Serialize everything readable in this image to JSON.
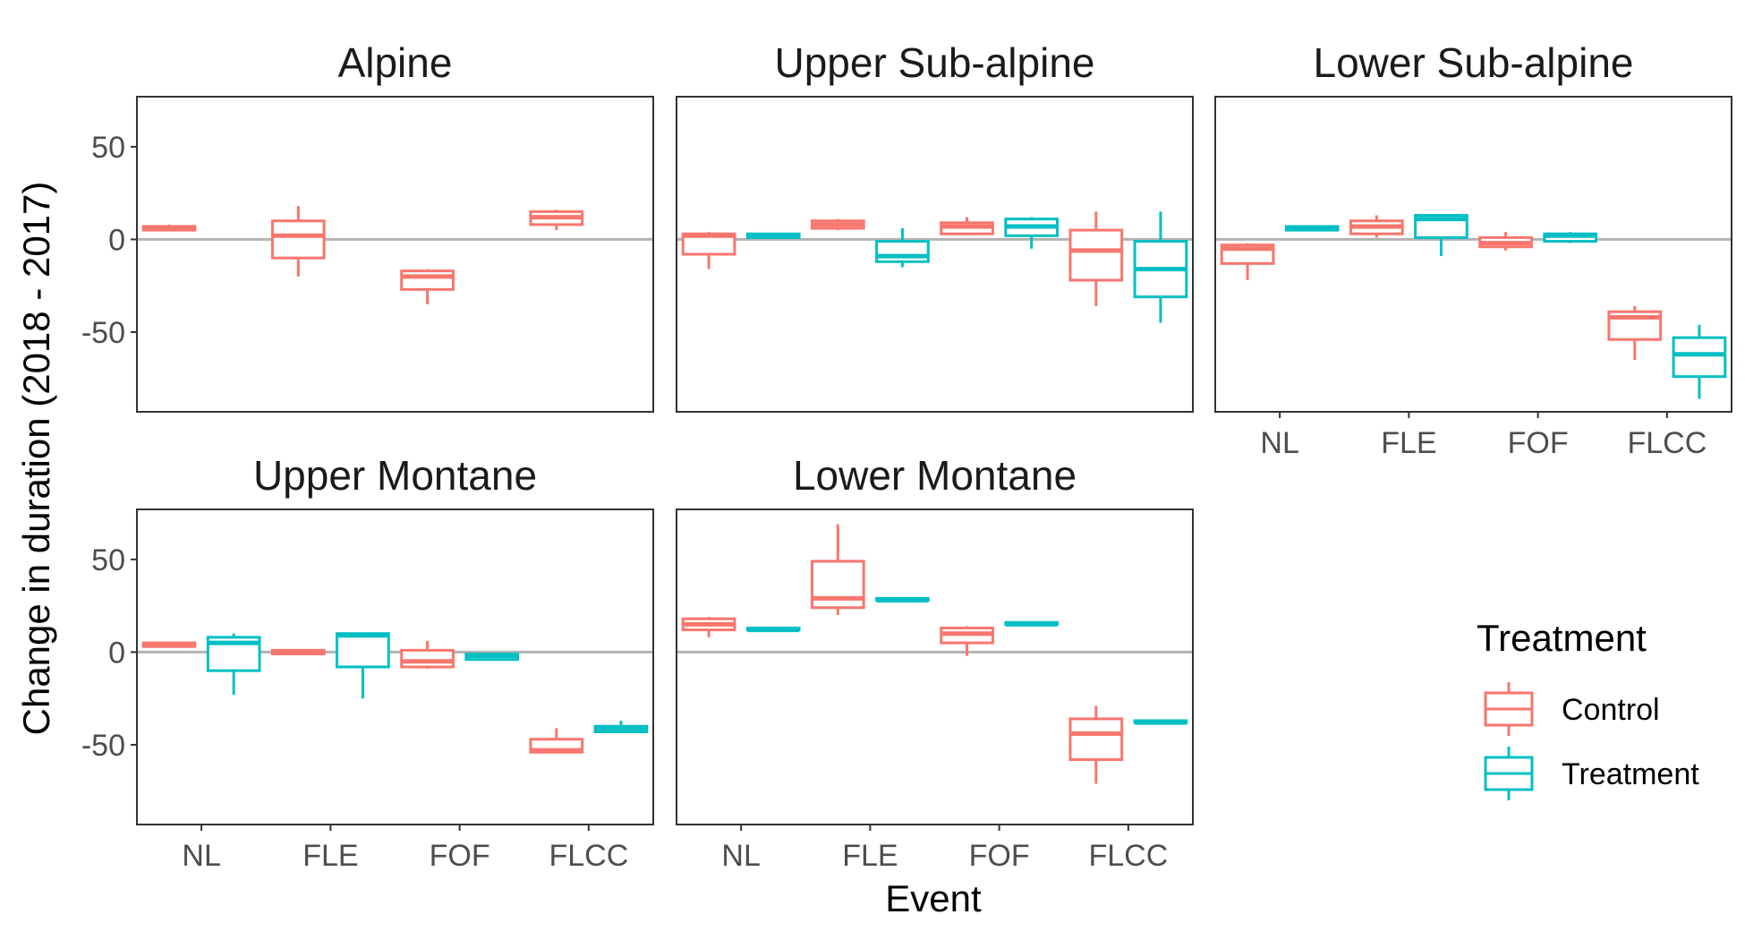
{
  "chart_data": {
    "type": "boxplot",
    "xlabel": "Event",
    "ylabel": "Change in duration (2018 - 2017)",
    "ylim": [
      -93,
      77
    ],
    "yticks": [
      -50,
      0,
      50
    ],
    "ytick_labels": [
      "-50",
      "0",
      "50"
    ],
    "categories": [
      "NL",
      "FLE",
      "FOF",
      "FLCC"
    ],
    "reference_line": 0,
    "legend": {
      "title": "Treatment",
      "placement": "right",
      "entries": [
        {
          "name": "Control",
          "color": "#F8766D"
        },
        {
          "name": "Treatment",
          "color": "#00BFC4"
        }
      ]
    },
    "panels": [
      {
        "title": "Alpine",
        "boxes": [
          {
            "category": "NL",
            "group": "Control",
            "min": 5,
            "q1": 5,
            "median": 6,
            "q3": 7,
            "max": 8
          },
          {
            "category": "FLE",
            "group": "Control",
            "min": -20,
            "q1": -10,
            "median": 2,
            "q3": 10,
            "max": 18
          },
          {
            "category": "FOF",
            "group": "Control",
            "min": -35,
            "q1": -27,
            "median": -20,
            "q3": -17,
            "max": -16
          },
          {
            "category": "FLCC",
            "group": "Control",
            "min": 5,
            "q1": 8,
            "median": 12,
            "q3": 15,
            "max": 16
          }
        ]
      },
      {
        "title": "Upper Sub-alpine",
        "boxes": [
          {
            "category": "NL",
            "group": "Control",
            "min": -16,
            "q1": -8,
            "median": 2,
            "q3": 3,
            "max": 4
          },
          {
            "category": "NL",
            "group": "Treatment",
            "min": 1,
            "q1": 1,
            "median": 2,
            "q3": 3,
            "max": 3
          },
          {
            "category": "FLE",
            "group": "Control",
            "min": 5,
            "q1": 6,
            "median": 8,
            "q3": 10,
            "max": 11
          },
          {
            "category": "FLE",
            "group": "Treatment",
            "min": -15,
            "q1": -12,
            "median": -9,
            "q3": -1,
            "max": 6
          },
          {
            "category": "FOF",
            "group": "Control",
            "min": 3,
            "q1": 3,
            "median": 7,
            "q3": 9,
            "max": 12
          },
          {
            "category": "FOF",
            "group": "Treatment",
            "min": -5,
            "q1": 2,
            "median": 7,
            "q3": 11,
            "max": 12
          },
          {
            "category": "FLCC",
            "group": "Control",
            "min": -36,
            "q1": -22,
            "median": -6,
            "q3": 5,
            "max": 15
          },
          {
            "category": "FLCC",
            "group": "Treatment",
            "min": -45,
            "q1": -31,
            "median": -16,
            "q3": -1,
            "max": 15
          }
        ]
      },
      {
        "title": "Lower Sub-alpine",
        "boxes": [
          {
            "category": "NL",
            "group": "Control",
            "min": -22,
            "q1": -13,
            "median": -5,
            "q3": -3,
            "max": -2
          },
          {
            "category": "NL",
            "group": "Treatment",
            "min": 5,
            "q1": 5,
            "median": 6,
            "q3": 7,
            "max": 7
          },
          {
            "category": "FLE",
            "group": "Control",
            "min": 1,
            "q1": 3,
            "median": 7,
            "q3": 10,
            "max": 13
          },
          {
            "category": "FLE",
            "group": "Treatment",
            "min": -9,
            "q1": 1,
            "median": 11,
            "q3": 13,
            "max": 13
          },
          {
            "category": "FOF",
            "group": "Control",
            "min": -6,
            "q1": -4,
            "median": -2,
            "q3": 1,
            "max": 4
          },
          {
            "category": "FOF",
            "group": "Treatment",
            "min": -2,
            "q1": -1,
            "median": 2,
            "q3": 3,
            "max": 4
          },
          {
            "category": "FLCC",
            "group": "Control",
            "min": -65,
            "q1": -54,
            "median": -42,
            "q3": -39,
            "max": -36
          },
          {
            "category": "FLCC",
            "group": "Treatment",
            "min": -86,
            "q1": -74,
            "median": -62,
            "q3": -53,
            "max": -46
          }
        ]
      },
      {
        "title": "Upper Montane",
        "boxes": [
          {
            "category": "NL",
            "group": "Control",
            "min": 3,
            "q1": 3,
            "median": 4,
            "q3": 5,
            "max": 5
          },
          {
            "category": "NL",
            "group": "Treatment",
            "min": -23,
            "q1": -10,
            "median": 5,
            "q3": 8,
            "max": 10
          },
          {
            "category": "FLE",
            "group": "Control",
            "min": -1,
            "q1": -1,
            "median": 0,
            "q3": 1,
            "max": 1
          },
          {
            "category": "FLE",
            "group": "Treatment",
            "min": -25,
            "q1": -8,
            "median": 9,
            "q3": 10,
            "max": 10
          },
          {
            "category": "FOF",
            "group": "Control",
            "min": -9,
            "q1": -8,
            "median": -5,
            "q3": 1,
            "max": 6
          },
          {
            "category": "FOF",
            "group": "Treatment",
            "min": -4,
            "q1": -4,
            "median": -2,
            "q3": -1,
            "max": -1
          },
          {
            "category": "FLCC",
            "group": "Control",
            "min": -54,
            "q1": -54,
            "median": -53,
            "q3": -47,
            "max": -41
          },
          {
            "category": "FLCC",
            "group": "Treatment",
            "min": -43,
            "q1": -43,
            "median": -41,
            "q3": -40,
            "max": -37
          }
        ]
      },
      {
        "title": "Lower Montane",
        "boxes": [
          {
            "category": "NL",
            "group": "Control",
            "min": 8,
            "q1": 12,
            "median": 15,
            "q3": 18,
            "max": 19
          },
          {
            "category": "NL",
            "group": "Treatment",
            "min": 11,
            "q1": 12,
            "median": 12,
            "q3": 13,
            "max": 13
          },
          {
            "category": "FLE",
            "group": "Control",
            "min": 20,
            "q1": 24,
            "median": 29,
            "q3": 49,
            "max": 69
          },
          {
            "category": "FLE",
            "group": "Treatment",
            "min": 27,
            "q1": 28,
            "median": 28,
            "q3": 29,
            "max": 29
          },
          {
            "category": "FOF",
            "group": "Control",
            "min": -2,
            "q1": 5,
            "median": 10,
            "q3": 13,
            "max": 14
          },
          {
            "category": "FOF",
            "group": "Treatment",
            "min": 14,
            "q1": 15,
            "median": 15,
            "q3": 16,
            "max": 16
          },
          {
            "category": "FLCC",
            "group": "Control",
            "min": -71,
            "q1": -58,
            "median": -44,
            "q3": -36,
            "max": -29
          },
          {
            "category": "FLCC",
            "group": "Treatment",
            "min": -38,
            "q1": -38,
            "median": -38,
            "q3": -37,
            "max": -37
          }
        ]
      }
    ]
  }
}
